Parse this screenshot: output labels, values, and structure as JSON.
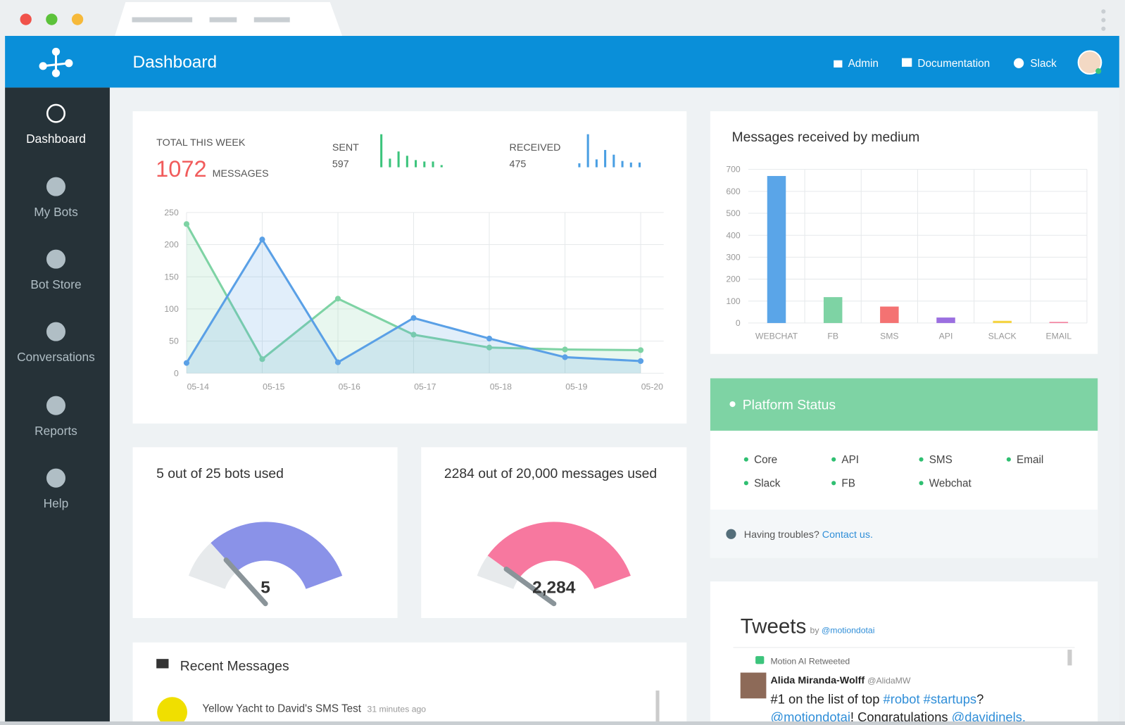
{
  "header": {
    "title": "Dashboard",
    "links": [
      "Admin",
      "Documentation",
      "Slack"
    ]
  },
  "sidebar": {
    "items": [
      "Dashboard",
      "My Bots",
      "Bot Store",
      "Conversations",
      "Reports",
      "Help"
    ]
  },
  "summary": {
    "total_label": "TOTAL THIS WEEK",
    "total": 1072,
    "total_unit": "MESSAGES",
    "sent": {
      "label": "SENT",
      "value": 597,
      "color": "#3cc47c",
      "bars": [
        46,
        12,
        22,
        16,
        10,
        8,
        8,
        3
      ]
    },
    "received": {
      "label": "RECEIVED",
      "value": 475,
      "color": "#4a9fe3",
      "bars": [
        5,
        42,
        10,
        22,
        16,
        8,
        6,
        6
      ]
    }
  },
  "chart_data": [
    {
      "type": "line",
      "area": true,
      "grid": true,
      "x": [
        "05-14",
        "05-15",
        "05-16",
        "05-17",
        "05-18",
        "05-19",
        "05-20"
      ],
      "series": [
        {
          "color": "#7ed3a4",
          "values": [
            232,
            22,
            116,
            60,
            40,
            37,
            36
          ]
        },
        {
          "color": "#5aa0e6",
          "values": [
            16,
            208,
            17,
            86,
            54,
            25,
            19
          ]
        }
      ],
      "ylim": [
        0,
        250
      ],
      "yticks": [
        0,
        50,
        100,
        150,
        200,
        250
      ]
    },
    {
      "type": "bar",
      "grid": true,
      "title": "Messages received by medium",
      "categories": [
        "WEBCHAT",
        "FB",
        "SMS",
        "API",
        "SLACK",
        "EMAIL"
      ],
      "values": [
        670,
        118,
        75,
        25,
        10,
        5
      ],
      "colors": [
        "#5aa5e8",
        "#7ed3a4",
        "#f47272",
        "#9b6fe0",
        "#f5d442",
        "#f47c9a"
      ],
      "ylim": [
        0,
        700
      ],
      "yticks": [
        0,
        100,
        200,
        300,
        400,
        500,
        600,
        700
      ]
    }
  ],
  "gauges": [
    {
      "title": "5 out of 25 bots used",
      "value": 5,
      "max": 25,
      "color": "#8a92e8"
    },
    {
      "title": "2284 out of 20,000 messages used",
      "value": 2284,
      "max": 20000,
      "value_label": "2,284",
      "color": "#f7789f"
    }
  ],
  "platform_status": {
    "title": "Platform Status",
    "services": [
      "Core",
      "API",
      "SMS",
      "Email",
      "Slack",
      "FB",
      "Webchat"
    ],
    "help": "Having troubles?",
    "link": "Contact us."
  },
  "recent_messages": {
    "title": "Recent Messages",
    "items": [
      {
        "text": "Yellow Yacht to David's SMS Test",
        "time": "31 minutes ago"
      }
    ]
  },
  "tweets": {
    "title": "Tweets",
    "by": "by",
    "handle": "@motiondotai",
    "items": [
      {
        "retweet": "Motion AI Retweeted",
        "author": "Alida Miranda-Wolff",
        "author_handle": "@AlidaMW",
        "lines": [
          [
            "#1 on the list of top ",
            "#robot",
            " ",
            "#startups",
            "?"
          ],
          [
            "@motiondotai",
            "! Congratulations ",
            "@davidjnels."
          ]
        ]
      }
    ]
  }
}
